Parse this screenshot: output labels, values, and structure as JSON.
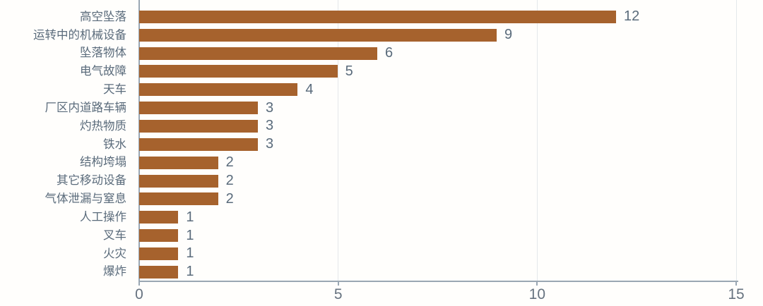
{
  "chart_data": {
    "type": "bar",
    "orientation": "horizontal",
    "title": "",
    "xlabel": "",
    "ylabel": "",
    "categories": [
      "高空坠落",
      "运转中的机械设备",
      "坠落物体",
      "电气故障",
      "天车",
      "厂区内道路车辆",
      "灼热物质",
      "铁水",
      "结构垮塌",
      "其它移动设备",
      "气体泄漏与窒息",
      "人工操作",
      "叉车",
      "火灾",
      "爆炸"
    ],
    "values": [
      12,
      9,
      6,
      5,
      4,
      3,
      3,
      3,
      2,
      2,
      2,
      1,
      1,
      1,
      1
    ],
    "value_labels": [
      "12",
      "9",
      "6",
      "5",
      "4",
      "3",
      "3",
      "3",
      "2",
      "2",
      "2",
      "1",
      "1",
      "1",
      "1"
    ],
    "x_ticks": [
      0,
      5,
      10,
      15
    ],
    "xlim": [
      0,
      15
    ],
    "grid": "vertical-gridlines-at-5-10-15",
    "legend": "none",
    "colors": {
      "bar": "#a6622d",
      "text": "#5a6b7b",
      "tick_text": "#66727f",
      "axis": "#9aa7b3",
      "gridline": "#e4e8eb",
      "background": "#fffefc"
    }
  }
}
